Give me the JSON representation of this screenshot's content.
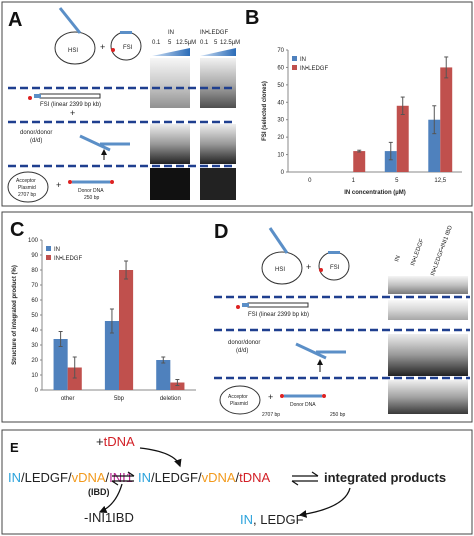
{
  "panel_a": {
    "letter": "A",
    "hsi": "HSI",
    "plus": [
      "+",
      "+",
      "+"
    ],
    "fsi": "FSI",
    "lanes": [
      "IN",
      "IN•LEDGF"
    ],
    "conc": [
      [
        "0.1",
        "5",
        "12.5µM"
      ],
      [
        "0.1",
        "5",
        "12.5µM"
      ]
    ],
    "fsi_linear": "FSI (linear 2399 bp kb)",
    "dd": [
      "donor/donor",
      "(d/d)"
    ],
    "acceptor": [
      "Acceptor",
      "Plasmid",
      "2707 bp"
    ],
    "donor": [
      "Donor DNA",
      "250 bp"
    ]
  },
  "panel_d": {
    "letter": "D",
    "hsi": "HSI",
    "plus": [
      "+",
      "+"
    ],
    "fsi": "FSI",
    "lanes": [
      "IN",
      "IN•LEDGF",
      "IN•LEDGF•INI1 IBD"
    ],
    "fsi_linear": "FSI (linear 2399 bp kb)",
    "dd": [
      "donor/donor",
      "(d/d)"
    ],
    "acceptor": [
      "Acceptor",
      "Plasmid",
      "2707 bp"
    ],
    "donor": [
      "Donor DNA",
      "250 bp"
    ]
  },
  "panel_e": {
    "letter": "E",
    "add": [
      "+",
      "tDNA"
    ],
    "complex1": [
      "IN",
      "/",
      "LEDGF",
      "/",
      "vDNA",
      "/",
      "INI1"
    ],
    "ibd": "(IBD)",
    "complex2": [
      "IN",
      "/",
      "LEDGF",
      "/",
      "vDNA",
      "/",
      "tDNA"
    ],
    "products": "integrated products",
    "release": "-INI1IBD",
    "free": [
      "IN",
      ", LEDGF"
    ]
  },
  "chart_data": [
    {
      "type": "bar",
      "panel_label": "B",
      "categories": [
        "0",
        "1",
        "5",
        "12,5"
      ],
      "series": [
        {
          "name": "IN",
          "color": "#4f81bd",
          "values": [
            0,
            0,
            12,
            30
          ],
          "errors": [
            0,
            0,
            5,
            8
          ]
        },
        {
          "name": "IN•LEDGF",
          "color": "#c0504d",
          "values": [
            0,
            12,
            38,
            60
          ],
          "errors": [
            0,
            0.5,
            5,
            6
          ]
        }
      ],
      "xlabel": "IN concentration (µM)",
      "ylabel": "FSI (selected clones)",
      "ylim": [
        0,
        70
      ],
      "yticks": [
        0,
        10,
        20,
        30,
        40,
        50,
        60,
        70
      ],
      "legend": "upper left"
    },
    {
      "type": "bar",
      "panel_label": "C",
      "categories": [
        "other",
        "5bp",
        "deletion"
      ],
      "series": [
        {
          "name": "IN",
          "color": "#4f81bd",
          "values": [
            34,
            46,
            20
          ],
          "errors": [
            5,
            8,
            2
          ]
        },
        {
          "name": "IN•LEDGF",
          "color": "#c0504d",
          "values": [
            15,
            80,
            5
          ],
          "errors": [
            7,
            6,
            2
          ]
        }
      ],
      "ylabel": "Structure of integrated product (%)",
      "ylim": [
        0,
        100
      ],
      "yticks": [
        0,
        10,
        20,
        30,
        40,
        50,
        60,
        70,
        80,
        90,
        100
      ],
      "legend": "upper left"
    }
  ]
}
